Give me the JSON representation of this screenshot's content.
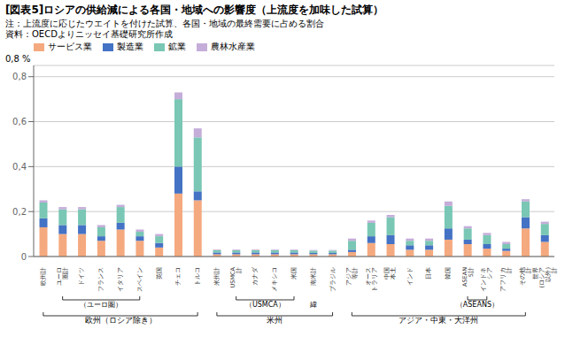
{
  "chart_data": {
    "type": "bar",
    "title": "[図表5]ロシアの供給減による各国・地域への影響度（上流度を加味した試算）",
    "notes": [
      "注：上流度に応じたウエイトを付けた試算、各国・地域の最終需要に占める割合",
      "資料：OECDよりニッセイ基礎研究所作成"
    ],
    "ylabel": "0,8 %",
    "categories": [
      "欧州計",
      "ユーロ\n圏計",
      "ドイツ",
      "フランス",
      "イタリア",
      "スペイン",
      "英国",
      "チェコ",
      "トルコ",
      "米州計",
      "USMCA\n計",
      "カナダ",
      "メキシコ",
      "米国",
      "南米計",
      "ブラジル",
      "アジア\n等計",
      "オース\nトラリア",
      "中国\n本土",
      "インド",
      "日本",
      "韓国",
      "ASEAN\n5計",
      "インドネ\nシア",
      "アフリカ\n計",
      "その他\n計",
      "世界\n(ロシア\n以外)\n計"
    ],
    "series": [
      {
        "name": "サービス業",
        "color": "#F5A97F",
        "values": [
          0.13,
          0.1,
          0.1,
          0.07,
          0.12,
          0.07,
          0.04,
          0.28,
          0.25,
          0.01,
          0.01,
          0.01,
          0.01,
          0.01,
          0.01,
          0.01,
          0.02,
          0.06,
          0.055,
          0.03,
          0.03,
          0.075,
          0.055,
          0.035,
          0.025,
          0.125,
          0.065
        ]
      },
      {
        "name": "製造業",
        "color": "#4472C4",
        "values": [
          0.04,
          0.04,
          0.04,
          0.02,
          0.03,
          0.02,
          0.02,
          0.12,
          0.04,
          0.008,
          0.008,
          0.008,
          0.008,
          0.008,
          0.006,
          0.006,
          0.01,
          0.03,
          0.04,
          0.02,
          0.02,
          0.05,
          0.02,
          0.02,
          0.01,
          0.05,
          0.03
        ]
      },
      {
        "name": "鉱業",
        "color": "#79C7B4",
        "values": [
          0.07,
          0.07,
          0.07,
          0.04,
          0.07,
          0.02,
          0.03,
          0.3,
          0.24,
          0.01,
          0.01,
          0.01,
          0.01,
          0.01,
          0.01,
          0.01,
          0.04,
          0.06,
          0.08,
          0.02,
          0.02,
          0.1,
          0.05,
          0.04,
          0.02,
          0.07,
          0.05
        ]
      },
      {
        "name": "農林水産業",
        "color": "#C5ADDA",
        "values": [
          0.01,
          0.01,
          0.01,
          0.01,
          0.01,
          0.01,
          0.01,
          0.03,
          0.04,
          0.003,
          0.003,
          0.003,
          0.003,
          0.003,
          0.003,
          0.003,
          0.01,
          0.01,
          0.01,
          0.01,
          0.01,
          0.02,
          0.01,
          0.01,
          0.01,
          0.01,
          0.01
        ]
      }
    ],
    "stacked": true,
    "legend": "upper left",
    "grid": true,
    "ylim": [
      0,
      0.85
    ],
    "yticks": [
      0,
      {
        "value": 0.2,
        "label": "0,2"
      },
      {
        "value": 0.4,
        "label": "0,4"
      },
      {
        "value": 0.6,
        "label": "0,6"
      },
      {
        "value": 0.8,
        "label": "0,8"
      }
    ],
    "brackets": {
      "inner": [
        {
          "text": "（ユーロ圏）",
          "from": 1,
          "to": 5
        },
        {
          "text": "（USMCA）",
          "from": 10,
          "to": 13
        },
        {
          "text": "（ASEANS）",
          "from": 22,
          "to": 23
        }
      ],
      "outer": [
        {
          "text": "欧州（ロシア除き）",
          "from": 0,
          "to": 8
        },
        {
          "text": "米州",
          "from": 9,
          "to": 15
        },
        {
          "text": "アジア・中東・大洋州",
          "from": 16,
          "to": 25
        }
      ]
    },
    "annotations": [
      {
        "text": "緯",
        "at": 14
      }
    ]
  }
}
